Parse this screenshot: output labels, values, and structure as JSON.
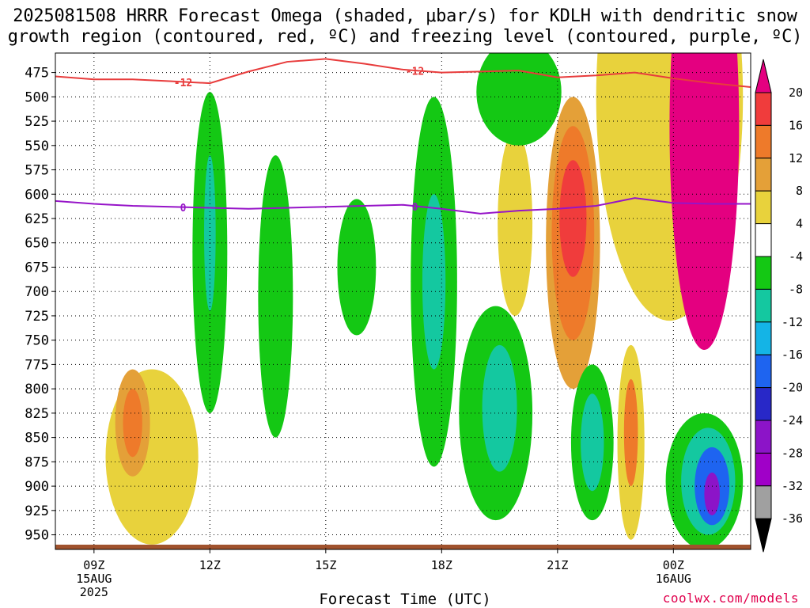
{
  "title": {
    "line1": "2025081508 HRRR Forecast Omega (shaded, μbar/s) for KDLH with dendritic snow",
    "line2": "growth region (contoured, red, ºC) and freezing level (contoured, purple, ºC)"
  },
  "credit": "coolwx.com/models",
  "chart_data": {
    "type": "heatmap",
    "xlabel": "Forecast Time (UTC)",
    "ylabel": "",
    "x_ticks": [
      {
        "hour": 1,
        "lines": [
          "09Z",
          "15AUG",
          "2025"
        ]
      },
      {
        "hour": 4,
        "lines": [
          "12Z"
        ]
      },
      {
        "hour": 7,
        "lines": [
          "15Z"
        ]
      },
      {
        "hour": 10,
        "lines": [
          "18Z"
        ]
      },
      {
        "hour": 13,
        "lines": [
          "21Z"
        ]
      },
      {
        "hour": 16,
        "lines": [
          "00Z",
          "16AUG"
        ]
      }
    ],
    "xlim_hours": [
      0,
      18
    ],
    "y_ticks": [
      475,
      500,
      525,
      550,
      575,
      600,
      625,
      650,
      675,
      700,
      725,
      750,
      775,
      800,
      825,
      850,
      875,
      900,
      925,
      950
    ],
    "ylim_mb": [
      455,
      965
    ],
    "grid": true,
    "colorbar": {
      "labels": [
        "20",
        "16",
        "12",
        "8",
        "4",
        "-4",
        "-8",
        "-12",
        "-16",
        "-20",
        "-24",
        "-28",
        "-32",
        "-36"
      ],
      "colors": [
        "#e40080",
        "#f03c3c",
        "#ee7a2a",
        "#e4a038",
        "#e8d23c",
        "#ffffff",
        "#14c814",
        "#14c8a0",
        "#14b4e6",
        "#1e64f0",
        "#2828c8",
        "#8c14c8",
        "#a000c8",
        "#a0a0a0",
        "#000000"
      ]
    },
    "omega_regions": [
      {
        "level": 4,
        "color": "#e8d23c",
        "center": [
          11.9,
          630
        ],
        "rx": 0.45,
        "ry": 95
      },
      {
        "level": 4,
        "color": "#e8d23c",
        "center": [
          15.9,
          500
        ],
        "rx": 1.9,
        "ry": 230
      },
      {
        "level": 8,
        "color": "#e4a038",
        "center": [
          13.4,
          650
        ],
        "rx": 0.7,
        "ry": 150
      },
      {
        "level": 12,
        "color": "#ee7a2a",
        "center": [
          13.4,
          640
        ],
        "rx": 0.55,
        "ry": 110
      },
      {
        "level": 16,
        "color": "#f03c3c",
        "center": [
          13.4,
          625
        ],
        "rx": 0.35,
        "ry": 60
      },
      {
        "level": 20,
        "color": "#e40080",
        "center": [
          16.8,
          530
        ],
        "rx": 0.9,
        "ry": 230
      },
      {
        "level": 4,
        "color": "#e8d23c",
        "center": [
          2.5,
          870
        ],
        "rx": 1.2,
        "ry": 90
      },
      {
        "level": 8,
        "color": "#e4a038",
        "center": [
          2.0,
          835
        ],
        "rx": 0.45,
        "ry": 55
      },
      {
        "level": 12,
        "color": "#ee7a2a",
        "center": [
          2.0,
          835
        ],
        "rx": 0.25,
        "ry": 35
      },
      {
        "level": 4,
        "color": "#e8d23c",
        "center": [
          14.9,
          855
        ],
        "rx": 0.35,
        "ry": 100
      },
      {
        "level": 12,
        "color": "#ee7a2a",
        "center": [
          14.9,
          845
        ],
        "rx": 0.18,
        "ry": 55
      },
      {
        "level": -4,
        "color": "#14c814",
        "center": [
          4.0,
          660
        ],
        "rx": 0.45,
        "ry": 165
      },
      {
        "level": -12,
        "color": "#14c8a0",
        "center": [
          4.0,
          640
        ],
        "rx": 0.15,
        "ry": 80
      },
      {
        "level": -4,
        "color": "#14c814",
        "center": [
          5.7,
          705
        ],
        "rx": 0.45,
        "ry": 145
      },
      {
        "level": -4,
        "color": "#14c814",
        "center": [
          7.8,
          675
        ],
        "rx": 0.5,
        "ry": 70
      },
      {
        "level": -4,
        "color": "#14c814",
        "center": [
          9.8,
          690
        ],
        "rx": 0.6,
        "ry": 190
      },
      {
        "level": -12,
        "color": "#14c8a0",
        "center": [
          9.8,
          690
        ],
        "rx": 0.3,
        "ry": 90
      },
      {
        "level": -4,
        "color": "#14c814",
        "center": [
          11.4,
          825
        ],
        "rx": 0.95,
        "ry": 110
      },
      {
        "level": -12,
        "color": "#14c8a0",
        "center": [
          11.5,
          820
        ],
        "rx": 0.45,
        "ry": 65
      },
      {
        "level": -4,
        "color": "#14c814",
        "center": [
          13.9,
          855
        ],
        "rx": 0.55,
        "ry": 80
      },
      {
        "level": -12,
        "color": "#14c8a0",
        "center": [
          13.9,
          855
        ],
        "rx": 0.3,
        "ry": 50
      },
      {
        "level": -4,
        "color": "#14c814",
        "center": [
          12.0,
          495
        ],
        "rx": 1.1,
        "ry": 55
      },
      {
        "level": -4,
        "color": "#14c814",
        "center": [
          16.8,
          895
        ],
        "rx": 1.0,
        "ry": 70
      },
      {
        "level": -12,
        "color": "#14c8a0",
        "center": [
          16.9,
          895
        ],
        "rx": 0.7,
        "ry": 55
      },
      {
        "level": -20,
        "color": "#1e64f0",
        "center": [
          17.0,
          900
        ],
        "rx": 0.45,
        "ry": 40
      },
      {
        "level": -28,
        "color": "#8c14c8",
        "center": [
          17.0,
          908
        ],
        "rx": 0.2,
        "ry": 22
      }
    ],
    "series": [
      {
        "name": "-12",
        "color": "#e83c3c",
        "x": [
          0,
          1,
          2,
          3,
          4,
          5,
          6,
          7,
          8,
          9,
          10,
          11,
          12,
          13,
          14,
          15,
          16,
          17,
          18
        ],
        "y": [
          479,
          482,
          482,
          484,
          486,
          474,
          464,
          461,
          466,
          472,
          475,
          474,
          473,
          480,
          478,
          475,
          481,
          486,
          490
        ]
      },
      {
        "name": "0",
        "color": "#9614c8",
        "x": [
          0,
          1,
          2,
          3,
          4,
          5,
          6,
          7,
          8,
          9,
          10,
          11,
          12,
          13,
          14,
          15,
          16,
          17,
          18
        ],
        "y": [
          607,
          610,
          612,
          613,
          614,
          615,
          614,
          613,
          612,
          611,
          615,
          620,
          617,
          615,
          612,
          604,
          609,
          610,
          610
        ]
      }
    ]
  }
}
